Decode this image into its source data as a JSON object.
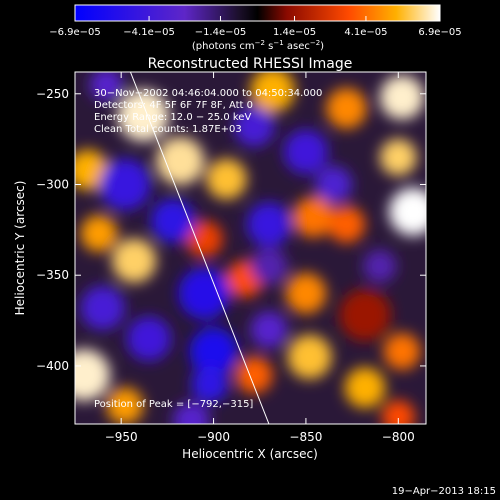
{
  "chart_data": {
    "type": "heatmap",
    "title": "Reconstructed RHESSI Image",
    "xlabel": "Heliocentric X (arcsec)",
    "ylabel": "Heliocentric Y (arcsec)",
    "xlim": [
      -975,
      -785
    ],
    "ylim": [
      -432,
      -238
    ],
    "x_ticks": [
      {
        "value": -950,
        "label": "−950"
      },
      {
        "value": -900,
        "label": "−900"
      },
      {
        "value": -850,
        "label": "−850"
      },
      {
        "value": -800,
        "label": "−800"
      }
    ],
    "y_ticks": [
      {
        "value": -250,
        "label": "−250"
      },
      {
        "value": -300,
        "label": "−300"
      },
      {
        "value": -350,
        "label": "−350"
      },
      {
        "value": -400,
        "label": "−400"
      }
    ],
    "colorbar": {
      "min": -6.9e-05,
      "max": 6.9e-05,
      "ticks": [
        {
          "value": -6.9e-05,
          "label": "−6.9e−05"
        },
        {
          "value": -4.1e-05,
          "label": "−4.1e−05"
        },
        {
          "value": -1.4e-05,
          "label": "−1.4e−05"
        },
        {
          "value": 1.4e-05,
          "label": "1.4e−05"
        },
        {
          "value": 4.1e-05,
          "label": "4.1e−05"
        },
        {
          "value": 6.9e-05,
          "label": "6.9e−05"
        }
      ],
      "unit_parts": [
        "(photons cm",
        "−2",
        " s",
        "−1",
        " asec",
        "−2",
        ")"
      ]
    },
    "annotations": {
      "time_range": "30−Nov−2002 04:46:04.000 to 04:50:34.000",
      "detectors": "Detectors: 4F 5F 6F 7F 8F, Att 0",
      "energy_range": "Energy Range: 12.0 − 25.0 keV",
      "method": "Clean     Total counts: 1.87E+03",
      "peak": "Position of Peak = [−792,−315]"
    },
    "limb_line": [
      [
        -945,
        -238
      ],
      [
        -870,
        -432
      ]
    ],
    "blobs": [
      {
        "x": -818,
        "y": -372,
        "level": -1.0,
        "size": 4
      },
      {
        "x": -818,
        "y": -372,
        "level": -0.75,
        "size": 9
      },
      {
        "x": -818,
        "y": -372,
        "level": 0.2,
        "size": 14
      },
      {
        "x": -938,
        "y": -262,
        "level": 0.95,
        "size": 14
      },
      {
        "x": -918,
        "y": -287,
        "level": 0.9,
        "size": 13
      },
      {
        "x": -893,
        "y": -297,
        "level": 0.8,
        "size": 11
      },
      {
        "x": -868,
        "y": -248,
        "level": 0.75,
        "size": 12
      },
      {
        "x": -828,
        "y": -258,
        "level": 0.65,
        "size": 11
      },
      {
        "x": -798,
        "y": -252,
        "level": 0.95,
        "size": 12
      },
      {
        "x": -792,
        "y": -315,
        "level": 1.0,
        "size": 13
      },
      {
        "x": -800,
        "y": -285,
        "level": 0.85,
        "size": 10
      },
      {
        "x": -968,
        "y": -292,
        "level": 0.75,
        "size": 11
      },
      {
        "x": -962,
        "y": -327,
        "level": 0.7,
        "size": 10
      },
      {
        "x": -943,
        "y": -342,
        "level": 0.85,
        "size": 12
      },
      {
        "x": -970,
        "y": -405,
        "level": 0.95,
        "size": 14
      },
      {
        "x": -948,
        "y": -422,
        "level": 0.7,
        "size": 10
      },
      {
        "x": -846,
        "y": -318,
        "level": 0.6,
        "size": 11
      },
      {
        "x": -828,
        "y": -322,
        "level": 0.55,
        "size": 10
      },
      {
        "x": -850,
        "y": -360,
        "level": 0.65,
        "size": 11
      },
      {
        "x": -848,
        "y": -395,
        "level": 0.8,
        "size": 12
      },
      {
        "x": -818,
        "y": -412,
        "level": 0.75,
        "size": 11
      },
      {
        "x": -798,
        "y": -392,
        "level": 0.6,
        "size": 10
      },
      {
        "x": -883,
        "y": -352,
        "level": 0.5,
        "size": 10
      },
      {
        "x": -905,
        "y": -330,
        "level": 0.45,
        "size": 10
      },
      {
        "x": -878,
        "y": -405,
        "level": 0.55,
        "size": 10
      },
      {
        "x": -800,
        "y": -428,
        "level": 0.5,
        "size": 9
      },
      {
        "x": -948,
        "y": -300,
        "level": -0.65,
        "size": 14
      },
      {
        "x": -922,
        "y": -320,
        "level": -0.7,
        "size": 12
      },
      {
        "x": -905,
        "y": -360,
        "level": -0.75,
        "size": 14
      },
      {
        "x": -935,
        "y": -385,
        "level": -0.6,
        "size": 12
      },
      {
        "x": -960,
        "y": -368,
        "level": -0.55,
        "size": 12
      },
      {
        "x": -900,
        "y": -392,
        "level": -0.8,
        "size": 13
      },
      {
        "x": -902,
        "y": -410,
        "level": -0.7,
        "size": 10
      },
      {
        "x": -870,
        "y": -322,
        "level": -0.65,
        "size": 12
      },
      {
        "x": -878,
        "y": -268,
        "level": -0.55,
        "size": 11
      },
      {
        "x": -850,
        "y": -282,
        "level": -0.6,
        "size": 12
      },
      {
        "x": -835,
        "y": -300,
        "level": -0.5,
        "size": 10
      },
      {
        "x": -870,
        "y": -380,
        "level": -0.45,
        "size": 10
      },
      {
        "x": -912,
        "y": -430,
        "level": -0.45,
        "size": 10
      },
      {
        "x": -958,
        "y": -245,
        "level": -0.45,
        "size": 9
      },
      {
        "x": -870,
        "y": -345,
        "level": -0.35,
        "size": 10
      },
      {
        "x": -810,
        "y": -345,
        "level": -0.35,
        "size": 9
      }
    ]
  },
  "footer": {
    "timestamp": "19−Apr−2013 18:15"
  },
  "colors": {
    "background": "#000000",
    "text": "#ffffff",
    "limb": "#ffffff"
  }
}
